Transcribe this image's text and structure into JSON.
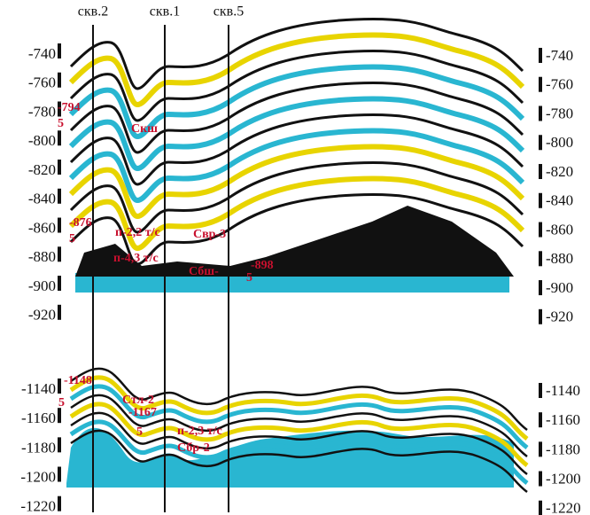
{
  "wells": [
    "скв.2",
    "скв.1",
    "скв.5"
  ],
  "panels": [
    {
      "ylim": [
        -730,
        -925
      ],
      "yticks": [
        -740,
        -760,
        -780,
        -800,
        -820,
        -840,
        -860,
        -880,
        -900,
        -920
      ],
      "annotations": [
        "-794",
        "5",
        "Скш",
        "-876",
        "5",
        "п-2,2 т/с",
        "Свр-3",
        "п-4,3 т/с",
        "Сбш-",
        "5",
        "-898"
      ]
    },
    {
      "ylim": [
        -1130,
        -1225
      ],
      "yticks": [
        -1140,
        -1160,
        -1180,
        -1200,
        -1220
      ],
      "annotations": [
        "-1148",
        "5",
        "Стл-2",
        "-1167",
        "5",
        "п-2,3 т/с",
        "Сбр-2"
      ]
    }
  ]
}
